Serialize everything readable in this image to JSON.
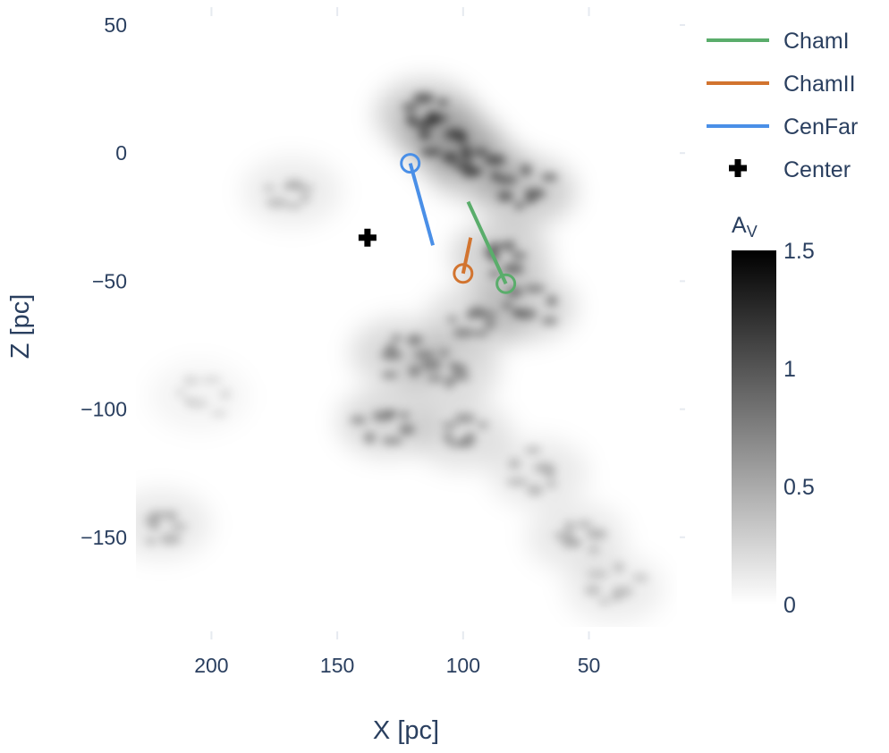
{
  "chart_data": {
    "type": "heatmap",
    "xlabel": "X [pc]",
    "ylabel": "Z [pc]",
    "xlim": [
      230,
      15
    ],
    "ylim": [
      -185,
      50
    ],
    "x_reversed": true,
    "x_ticks": [
      200,
      150,
      100,
      50
    ],
    "x_tick_labels": [
      "200",
      "150",
      "100",
      "50"
    ],
    "y_ticks": [
      50,
      0,
      -50,
      -100,
      -150
    ],
    "y_tick_labels": [
      "50",
      "0",
      "−50",
      "−100",
      "−150"
    ],
    "heatmap": {
      "colorscale": [
        "#ffffff",
        "#000000"
      ],
      "colorbar": {
        "title_main": "A",
        "title_sub": "V",
        "range": [
          0,
          1.5
        ],
        "ticks": [
          0,
          0.5,
          1,
          1.5
        ],
        "tick_labels": [
          "0",
          "0.5",
          "1",
          "1.5"
        ]
      },
      "features": [
        {
          "x": 115,
          "z": 15,
          "val": 1.4
        },
        {
          "x": 105,
          "z": 5,
          "val": 1.5
        },
        {
          "x": 95,
          "z": -5,
          "val": 1.4
        },
        {
          "x": 75,
          "z": -15,
          "val": 1.3
        },
        {
          "x": 85,
          "z": -40,
          "val": 1.2
        },
        {
          "x": 75,
          "z": -60,
          "val": 1.1
        },
        {
          "x": 95,
          "z": -65,
          "val": 0.9
        },
        {
          "x": 125,
          "z": -78,
          "val": 1.0
        },
        {
          "x": 105,
          "z": -85,
          "val": 0.9
        },
        {
          "x": 130,
          "z": -105,
          "val": 1.0
        },
        {
          "x": 100,
          "z": -110,
          "val": 0.8
        },
        {
          "x": 70,
          "z": -125,
          "val": 0.6
        },
        {
          "x": 55,
          "z": -150,
          "val": 0.6
        },
        {
          "x": 40,
          "z": -170,
          "val": 0.5
        },
        {
          "x": 220,
          "z": -145,
          "val": 0.6
        },
        {
          "x": 205,
          "z": -95,
          "val": 0.3
        },
        {
          "x": 168,
          "z": -15,
          "val": 0.5
        }
      ]
    },
    "series": [
      {
        "name": "ChamI",
        "color": "#5aad6b",
        "type": "line",
        "x": [
          98,
          83
        ],
        "y": [
          -19,
          -51
        ]
      },
      {
        "name": "ChamI",
        "color": "#5aad6b",
        "type": "circle",
        "x": [
          83
        ],
        "y": [
          -51
        ]
      },
      {
        "name": "ChamII",
        "color": "#d2742f",
        "type": "line",
        "x": [
          100,
          97
        ],
        "y": [
          -47,
          -33
        ]
      },
      {
        "name": "ChamII",
        "color": "#d2742f",
        "type": "circle",
        "x": [
          100
        ],
        "y": [
          -47
        ]
      },
      {
        "name": "CenFar",
        "color": "#4a8fe7",
        "type": "line",
        "x": [
          121,
          112
        ],
        "y": [
          -4,
          -36
        ]
      },
      {
        "name": "CenFar",
        "color": "#4a8fe7",
        "type": "circle",
        "x": [
          121
        ],
        "y": [
          -4
        ]
      },
      {
        "name": "Center",
        "color": "#000000",
        "type": "cross",
        "x": [
          138
        ],
        "y": [
          -33
        ]
      }
    ],
    "legend": {
      "position": "top-right",
      "items": [
        {
          "label": "ChamI",
          "color": "#5aad6b",
          "symbol": "line"
        },
        {
          "label": "ChamII",
          "color": "#d2742f",
          "symbol": "line"
        },
        {
          "label": "CenFar",
          "color": "#4a8fe7",
          "symbol": "line"
        },
        {
          "label": "Center",
          "color": "#000000",
          "symbol": "cross"
        }
      ]
    },
    "grid": false
  }
}
